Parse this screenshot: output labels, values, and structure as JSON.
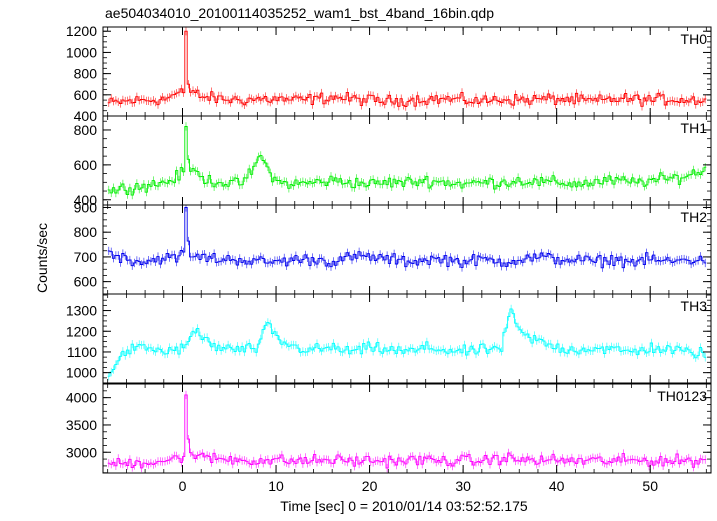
{
  "title": "ae504034010_20100114035252_wam1_bst_4band_16bin.qdp",
  "ylabel": "Counts/sec",
  "xlabel": "Time [sec] 0 = 2010/01/14 03:52:52.175",
  "colors": {
    "axis": "#000000",
    "background": "#ffffff"
  },
  "chart_data": {
    "type": "line",
    "title": "ae504034010_20100114035252_wam1_bst_4band_16bin.qdp",
    "xlabel": "Time [sec] 0 = 2010/01/14 03:52:52.175",
    "ylabel": "Counts/sec",
    "xlim": [
      -8.5,
      56.5
    ],
    "x_ticks": [
      0,
      10,
      20,
      30,
      40,
      50
    ],
    "grid": false,
    "legend": "none",
    "error_bars": true,
    "bin_seconds": 0.25,
    "panels": [
      {
        "name": "TH0",
        "color": "#ff0000",
        "ylim": [
          400,
          1240
        ],
        "y_ticks": [
          400,
          600,
          800,
          1000,
          1200
        ],
        "series": [
          {
            "x": [
              -8,
              -6,
              -4,
              -2,
              -1,
              0,
              0.1,
              0.25,
              0.45,
              0.7,
              1,
              2,
              4,
              6,
              8,
              10,
              12,
              14,
              16,
              18,
              20,
              22,
              24,
              26,
              28,
              30,
              32,
              34,
              36,
              38,
              40,
              42,
              44,
              46,
              48,
              50,
              52,
              54,
              56
            ],
            "y": [
              520,
              540,
              550,
              560,
              600,
              620,
              1240,
              1200,
              720,
              620,
              640,
              580,
              560,
              550,
              560,
              560,
              550,
              560,
              580,
              560,
              550,
              540,
              550,
              560,
              560,
              550,
              540,
              560,
              550,
              560,
              560,
              550,
              540,
              560,
              560,
              550,
              560,
              550,
              560
            ]
          }
        ]
      },
      {
        "name": "TH1",
        "color": "#00ee00",
        "ylim": [
          370,
          880
        ],
        "y_ticks": [
          400,
          600,
          800
        ],
        "series": [
          {
            "x": [
              -8,
              -6,
              -4,
              -2,
              -1,
              0,
              0.1,
              0.25,
              0.45,
              0.7,
              1,
              2,
              4,
              6,
              7.5,
              8,
              10,
              12,
              14,
              16,
              18,
              20,
              22,
              24,
              26,
              28,
              30,
              32,
              34,
              36,
              38,
              40,
              42,
              44,
              46,
              48,
              50,
              52,
              54,
              56
            ],
            "y": [
              450,
              470,
              480,
              500,
              520,
              560,
              880,
              820,
              650,
              560,
              580,
              520,
              500,
              490,
              570,
              660,
              500,
              490,
              500,
              510,
              500,
              490,
              500,
              500,
              510,
              500,
              490,
              500,
              500,
              510,
              500,
              500,
              490,
              500,
              510,
              500,
              510,
              520,
              540,
              580
            ]
          }
        ]
      },
      {
        "name": "TH2",
        "color": "#0000ee",
        "ylim": [
          550,
          910
        ],
        "y_ticks": [
          600,
          700,
          800,
          900
        ],
        "series": [
          {
            "x": [
              -8,
              -6,
              -4,
              -2,
              -1,
              0,
              0.1,
              0.25,
              0.45,
              0.7,
              1,
              2,
              4,
              6,
              8,
              10,
              12,
              14,
              16,
              18,
              20,
              22,
              24,
              26,
              28,
              30,
              32,
              34,
              36,
              38,
              40,
              42,
              44,
              46,
              48,
              50,
              52,
              54,
              56
            ],
            "y": [
              720,
              690,
              680,
              700,
              690,
              720,
              910,
              900,
              780,
              700,
              700,
              700,
              690,
              690,
              680,
              680,
              690,
              690,
              680,
              700,
              700,
              690,
              680,
              690,
              690,
              680,
              690,
              680,
              690,
              700,
              690,
              690,
              680,
              690,
              680,
              690,
              680,
              690,
              680
            ]
          }
        ]
      },
      {
        "name": "TH3",
        "color": "#00ffff",
        "ylim": [
          950,
          1380
        ],
        "y_ticks": [
          1000,
          1100,
          1200,
          1300
        ],
        "series": [
          {
            "x": [
              -8,
              -6,
              -4,
              -2,
              -1,
              0,
              0.5,
              1,
              1.5,
              2,
              3,
              4,
              6,
              8,
              9,
              10,
              12,
              14,
              16,
              18,
              20,
              22,
              24,
              26,
              28,
              30,
              32,
              34,
              35,
              36,
              38,
              40,
              42,
              44,
              46,
              48,
              50,
              52,
              54,
              56
            ],
            "y": [
              1000,
              1110,
              1120,
              1100,
              1110,
              1120,
              1150,
              1200,
              1190,
              1170,
              1130,
              1120,
              1110,
              1120,
              1240,
              1160,
              1120,
              1110,
              1120,
              1100,
              1120,
              1110,
              1100,
              1120,
              1110,
              1100,
              1110,
              1120,
              1300,
              1190,
              1150,
              1120,
              1110,
              1120,
              1110,
              1100,
              1120,
              1110,
              1100,
              1090
            ]
          }
        ]
      },
      {
        "name": "TH0123",
        "color": "#ff00ff",
        "ylim": [
          2620,
          4250
        ],
        "y_ticks": [
          3000,
          3500,
          4000
        ],
        "series": [
          {
            "x": [
              -8,
              -6,
              -4,
              -2,
              -1,
              0,
              0.1,
              0.25,
              0.45,
              0.7,
              1,
              2,
              4,
              6,
              8,
              10,
              12,
              14,
              16,
              18,
              20,
              22,
              24,
              26,
              28,
              30,
              32,
              34,
              36,
              38,
              40,
              42,
              44,
              46,
              48,
              50,
              52,
              54,
              56
            ],
            "y": [
              2780,
              2800,
              2820,
              2850,
              2880,
              2920,
              4200,
              4050,
              3300,
              3000,
              2950,
              2900,
              2880,
              2860,
              2850,
              2850,
              2840,
              2850,
              2860,
              2840,
              2850,
              2840,
              2850,
              2860,
              2840,
              2850,
              2840,
              2900,
              2860,
              2850,
              2860,
              2840,
              2850,
              2840,
              2850,
              2850,
              2840,
              2850,
              2830
            ]
          }
        ]
      }
    ]
  }
}
